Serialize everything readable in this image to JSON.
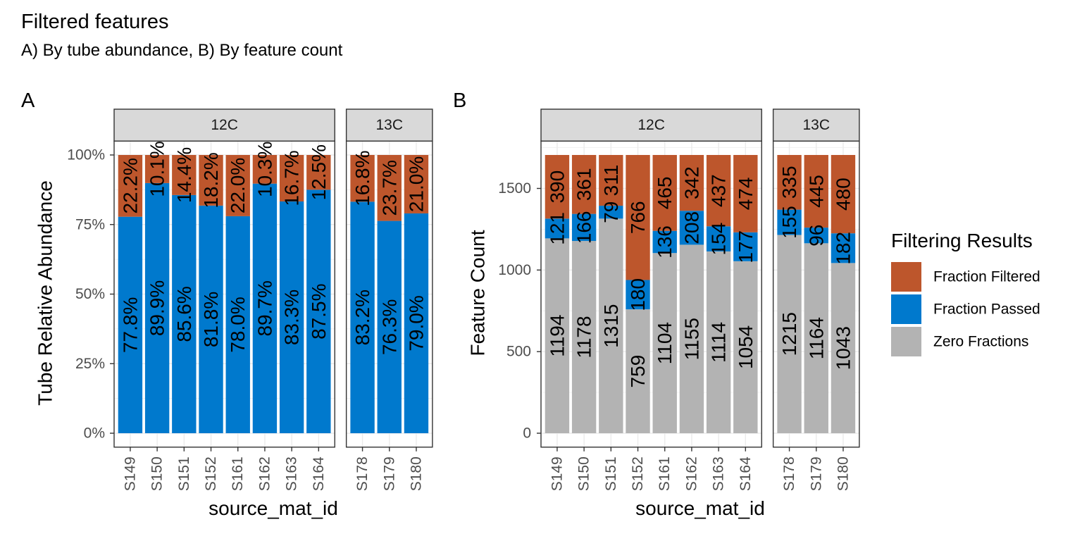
{
  "title": "Filtered features",
  "subtitle": "A) By tube abundance, B) By feature count",
  "legend": {
    "title": "Filtering Results",
    "position": "right",
    "items": [
      {
        "label": "Fraction Filtered",
        "color": "#BD562C"
      },
      {
        "label": "Fraction Passed",
        "color": "#0079CD"
      },
      {
        "label": "Zero Fractions",
        "color": "#B3B3B3"
      }
    ]
  },
  "chart_data": [
    {
      "tag": "A",
      "type": "bar",
      "stacked": true,
      "xlabel": "source_mat_id",
      "ylabel": "Tube Relative Abundance",
      "ylim": [
        0,
        100
      ],
      "yticks": [
        0,
        25,
        50,
        75,
        100
      ],
      "ytick_labels": [
        "0%",
        "25%",
        "50%",
        "75%",
        "100%"
      ],
      "grid": true,
      "facets": [
        {
          "label": "12C",
          "categories": [
            "S149",
            "S150",
            "S151",
            "S152",
            "S161",
            "S162",
            "S163",
            "S164"
          ]
        },
        {
          "label": "13C",
          "categories": [
            "S178",
            "S179",
            "S180"
          ]
        }
      ],
      "series": [
        {
          "name": "Fraction Passed",
          "color": "#0079CD",
          "values": [
            77.8,
            89.9,
            85.6,
            81.8,
            78.0,
            89.7,
            83.3,
            87.5,
            83.2,
            76.3,
            79.0
          ],
          "labels": [
            "77.8%",
            "89.9%",
            "85.6%",
            "81.8%",
            "78.0%",
            "89.7%",
            "83.3%",
            "87.5%",
            "83.2%",
            "76.3%",
            "79.0%"
          ]
        },
        {
          "name": "Fraction Filtered",
          "color": "#BD562C",
          "values": [
            22.2,
            10.1,
            14.4,
            18.2,
            22.0,
            10.3,
            16.7,
            12.5,
            16.8,
            23.7,
            21.0
          ],
          "labels": [
            "22.2%",
            "10.1%",
            "14.4%",
            "18.2%",
            "22.0%",
            "10.3%",
            "16.7%",
            "12.5%",
            "16.8%",
            "23.7%",
            "21.0%"
          ]
        }
      ]
    },
    {
      "tag": "B",
      "type": "bar",
      "stacked": true,
      "xlabel": "source_mat_id",
      "ylabel": "Feature Count",
      "ylim": [
        0,
        1705
      ],
      "yticks": [
        0,
        500,
        1000,
        1500
      ],
      "ytick_labels": [
        "0",
        "500",
        "1000",
        "1500"
      ],
      "grid": true,
      "facets": [
        {
          "label": "12C",
          "categories": [
            "S149",
            "S150",
            "S151",
            "S152",
            "S161",
            "S162",
            "S163",
            "S164"
          ]
        },
        {
          "label": "13C",
          "categories": [
            "S178",
            "S179",
            "S180"
          ]
        }
      ],
      "series": [
        {
          "name": "Zero Fractions",
          "color": "#B3B3B3",
          "values": [
            1194,
            1178,
            1315,
            759,
            1104,
            1155,
            1114,
            1054,
            1215,
            1164,
            1043
          ],
          "labels": [
            "1194",
            "1178",
            "1315",
            "759",
            "1104",
            "1155",
            "1114",
            "1054",
            "1215",
            "1164",
            "1043"
          ]
        },
        {
          "name": "Fraction Passed",
          "color": "#0079CD",
          "values": [
            121,
            166,
            79,
            180,
            136,
            208,
            154,
            177,
            155,
            96,
            182
          ],
          "labels": [
            "121",
            "166",
            "79",
            "180",
            "136",
            "208",
            "154",
            "177",
            "155",
            "96",
            "182"
          ]
        },
        {
          "name": "Fraction Filtered",
          "color": "#BD562C",
          "values": [
            390,
            361,
            311,
            766,
            465,
            342,
            437,
            474,
            335,
            445,
            480
          ],
          "labels": [
            "390",
            "361",
            "311",
            "766",
            "465",
            "342",
            "437",
            "474",
            "335",
            "445",
            "480"
          ]
        }
      ]
    }
  ]
}
